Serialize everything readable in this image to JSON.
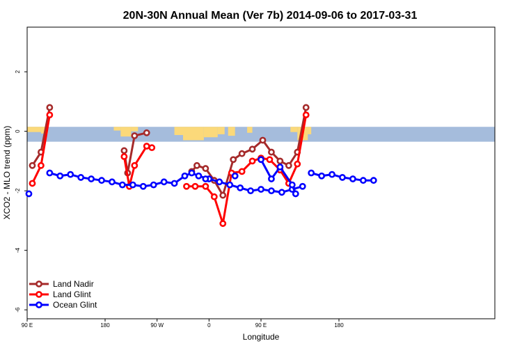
{
  "chart_data": {
    "type": "line",
    "title": "20N-30N Annual Mean (Ver 7b)   2014-09-06 to 2017-03-31",
    "xlabel": "Longitude",
    "ylabel": "XCO2 - MLO trend (ppm)",
    "xlim": [
      -90,
      180
    ],
    "ylim": [
      -6.3,
      3.5
    ],
    "x_ticks": [
      -90,
      -45,
      -15,
      15,
      45,
      90
    ],
    "x_tick_labels": [
      "90 E",
      "180",
      "90 W",
      "0",
      "90 E",
      "180"
    ],
    "y_ticks": [
      -6,
      -4,
      -2,
      0,
      2
    ],
    "y_tick_labels": [
      "-6",
      "-4",
      "-2",
      "0",
      "2"
    ],
    "grid": false,
    "legend_position": "bottom-left",
    "map_band": {
      "y_top": 0.15,
      "y_bottom": -0.35,
      "ocean_color": "#a5bcdc",
      "land_color": "#fbd97a"
    },
    "series": [
      {
        "name": "Land Nadir",
        "color": "#a52a2a",
        "segments": [
          [
            [
              -87,
              -1.15
            ],
            [
              -82,
              -0.7
            ],
            [
              -77,
              0.8
            ]
          ],
          [
            [
              -34,
              -0.65
            ],
            [
              -32,
              -1.4
            ],
            [
              -28,
              -0.15
            ],
            [
              -21,
              -0.05
            ]
          ],
          [
            [
              5,
              -1.35
            ],
            [
              8,
              -1.15
            ],
            [
              13,
              -1.25
            ],
            [
              18,
              -1.65
            ],
            [
              23,
              -2.15
            ],
            [
              29,
              -0.95
            ],
            [
              34,
              -0.75
            ],
            [
              40,
              -0.6
            ],
            [
              46,
              -0.3
            ],
            [
              51,
              -0.7
            ],
            [
              56,
              -1.0
            ],
            [
              61,
              -1.15
            ],
            [
              66,
              -0.7
            ],
            [
              71,
              0.8
            ]
          ]
        ]
      },
      {
        "name": "Land Glint",
        "color": "#ff0000",
        "segments": [
          [
            [
              -87,
              -1.75
            ],
            [
              -82,
              -1.15
            ],
            [
              -77,
              0.55
            ]
          ],
          [
            [
              -34,
              -0.85
            ],
            [
              -31,
              -1.85
            ],
            [
              -28,
              -1.15
            ],
            [
              -21,
              -0.5
            ],
            [
              -18,
              -0.55
            ]
          ],
          [
            [
              2,
              -1.85
            ],
            [
              7,
              -1.85
            ],
            [
              13,
              -1.85
            ],
            [
              18,
              -2.2
            ],
            [
              23,
              -3.1
            ],
            [
              28,
              -1.4
            ],
            [
              34,
              -1.35
            ],
            [
              40,
              -1.0
            ],
            [
              45,
              -0.9
            ],
            [
              50,
              -0.95
            ],
            [
              56,
              -1.3
            ],
            [
              61,
              -1.75
            ],
            [
              66,
              -1.1
            ],
            [
              71,
              0.55
            ]
          ]
        ]
      },
      {
        "name": "Ocean Glint",
        "color": "#0000ff",
        "segments": [
          [
            [
              -89,
              -2.1
            ]
          ],
          [
            [
              -77,
              -1.4
            ],
            [
              -71,
              -1.5
            ],
            [
              -65,
              -1.45
            ],
            [
              -59,
              -1.55
            ],
            [
              -53,
              -1.6
            ],
            [
              -47,
              -1.65
            ],
            [
              -41,
              -1.7
            ],
            [
              -35,
              -1.8
            ],
            [
              -29,
              -1.8
            ],
            [
              -23,
              -1.85
            ],
            [
              -17,
              -1.8
            ],
            [
              -11,
              -1.7
            ],
            [
              -5,
              -1.75
            ],
            [
              1,
              -1.5
            ],
            [
              5,
              -1.4
            ],
            [
              9,
              -1.5
            ],
            [
              15,
              -1.6
            ],
            [
              21,
              -1.7
            ],
            [
              27,
              -1.8
            ],
            [
              33,
              -1.9
            ],
            [
              39,
              -2.0
            ],
            [
              45,
              -1.95
            ],
            [
              51,
              -2.0
            ],
            [
              57,
              -2.05
            ],
            [
              63,
              -1.95
            ],
            [
              69,
              -1.85
            ]
          ],
          [
            [
              13,
              -1.6
            ]
          ],
          [
            [
              30,
              -1.5
            ]
          ],
          [
            [
              45,
              -0.95
            ],
            [
              51,
              -1.6
            ],
            [
              56,
              -1.2
            ],
            [
              63,
              -1.8
            ],
            [
              65,
              -2.1
            ]
          ],
          [
            [
              74,
              -1.4
            ],
            [
              80,
              -1.5
            ],
            [
              86,
              -1.45
            ],
            [
              92,
              -1.55
            ],
            [
              98,
              -1.6
            ],
            [
              104,
              -1.65
            ],
            [
              110,
              -1.65
            ]
          ]
        ]
      }
    ]
  }
}
